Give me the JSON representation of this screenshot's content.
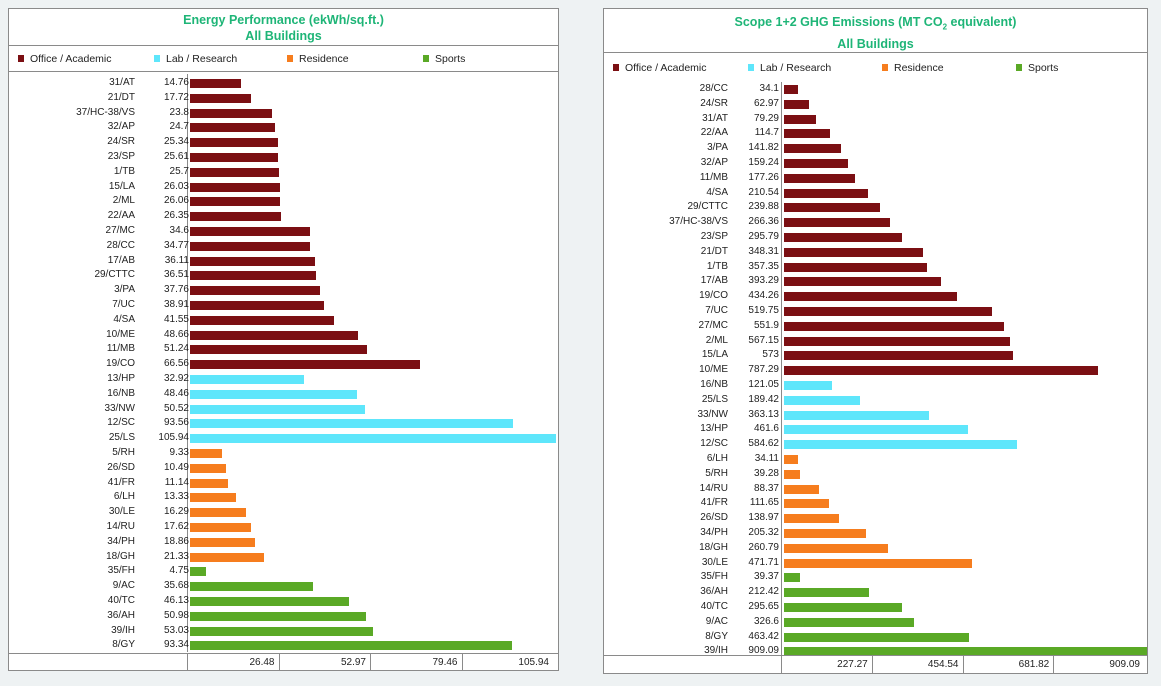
{
  "colors": {
    "office": "#7b0f13",
    "lab": "#5ee6fb",
    "residence": "#f67d1e",
    "sports": "#5aa926",
    "title": "#1eb577"
  },
  "legend": [
    "Office / Academic",
    "Lab / Research",
    "Residence",
    "Sports"
  ],
  "chart_data": [
    {
      "type": "bar",
      "orientation": "horizontal",
      "title": "Energy Performance (ekWh/sq.ft.)",
      "subtitle": "All Buildings",
      "xlim": [
        0,
        105.94
      ],
      "ticks": [
        "26.48",
        "52.97",
        "79.46",
        "105.94"
      ],
      "rows": [
        {
          "name": "31/AT",
          "value": 14.76,
          "group": "office"
        },
        {
          "name": "21/DT",
          "value": 17.72,
          "group": "office"
        },
        {
          "name": "37/HC-38/VS",
          "value": 23.8,
          "group": "office"
        },
        {
          "name": "32/AP",
          "value": 24.7,
          "group": "office"
        },
        {
          "name": "24/SR",
          "value": 25.34,
          "group": "office"
        },
        {
          "name": "23/SP",
          "value": 25.61,
          "group": "office"
        },
        {
          "name": "1/TB",
          "value": 25.7,
          "group": "office"
        },
        {
          "name": "15/LA",
          "value": 26.03,
          "group": "office"
        },
        {
          "name": "2/ML",
          "value": 26.06,
          "group": "office"
        },
        {
          "name": "22/AA",
          "value": 26.35,
          "group": "office"
        },
        {
          "name": "27/MC",
          "value": 34.6,
          "group": "office"
        },
        {
          "name": "28/CC",
          "value": 34.77,
          "group": "office"
        },
        {
          "name": "17/AB",
          "value": 36.11,
          "group": "office"
        },
        {
          "name": "29/CTTC",
          "value": 36.51,
          "group": "office"
        },
        {
          "name": "3/PA",
          "value": 37.76,
          "group": "office"
        },
        {
          "name": "7/UC",
          "value": 38.91,
          "group": "office"
        },
        {
          "name": "4/SA",
          "value": 41.55,
          "group": "office"
        },
        {
          "name": "10/ME",
          "value": 48.66,
          "group": "office"
        },
        {
          "name": "11/MB",
          "value": 51.24,
          "group": "office"
        },
        {
          "name": "19/CO",
          "value": 66.56,
          "group": "office"
        },
        {
          "name": "13/HP",
          "value": 32.92,
          "group": "lab"
        },
        {
          "name": "16/NB",
          "value": 48.46,
          "group": "lab"
        },
        {
          "name": "33/NW",
          "value": 50.52,
          "group": "lab"
        },
        {
          "name": "12/SC",
          "value": 93.56,
          "group": "lab"
        },
        {
          "name": "25/LS",
          "value": 105.94,
          "group": "lab"
        },
        {
          "name": "5/RH",
          "value": 9.33,
          "group": "residence"
        },
        {
          "name": "26/SD",
          "value": 10.49,
          "group": "residence"
        },
        {
          "name": "41/FR",
          "value": 11.14,
          "group": "residence"
        },
        {
          "name": "6/LH",
          "value": 13.33,
          "group": "residence"
        },
        {
          "name": "30/LE",
          "value": 16.29,
          "group": "residence"
        },
        {
          "name": "14/RU",
          "value": 17.62,
          "group": "residence"
        },
        {
          "name": "34/PH",
          "value": 18.86,
          "group": "residence"
        },
        {
          "name": "18/GH",
          "value": 21.33,
          "group": "residence"
        },
        {
          "name": "35/FH",
          "value": 4.75,
          "group": "sports"
        },
        {
          "name": "9/AC",
          "value": 35.68,
          "group": "sports"
        },
        {
          "name": "40/TC",
          "value": 46.13,
          "group": "sports"
        },
        {
          "name": "36/AH",
          "value": 50.98,
          "group": "sports"
        },
        {
          "name": "39/IH",
          "value": 53.03,
          "group": "sports"
        },
        {
          "name": "8/GY",
          "value": 93.34,
          "group": "sports"
        }
      ]
    },
    {
      "type": "bar",
      "orientation": "horizontal",
      "title_parts": [
        "Scope 1+2 GHG Emissions (MT CO",
        "2",
        " equivalent)"
      ],
      "subtitle": "All Buildings",
      "xlim": [
        0,
        909.09
      ],
      "ticks": [
        "227.27",
        "454.54",
        "681.82",
        "909.09"
      ],
      "rows": [
        {
          "name": "28/CC",
          "value": 34.1,
          "group": "office"
        },
        {
          "name": "24/SR",
          "value": 62.97,
          "group": "office"
        },
        {
          "name": "31/AT",
          "value": 79.29,
          "group": "office"
        },
        {
          "name": "22/AA",
          "value": 114.7,
          "group": "office"
        },
        {
          "name": "3/PA",
          "value": 141.82,
          "group": "office"
        },
        {
          "name": "32/AP",
          "value": 159.24,
          "group": "office"
        },
        {
          "name": "11/MB",
          "value": 177.26,
          "group": "office"
        },
        {
          "name": "4/SA",
          "value": 210.54,
          "group": "office"
        },
        {
          "name": "29/CTTC",
          "value": 239.88,
          "group": "office"
        },
        {
          "name": "37/HC-38/VS",
          "value": 266.36,
          "group": "office"
        },
        {
          "name": "23/SP",
          "value": 295.79,
          "group": "office"
        },
        {
          "name": "21/DT",
          "value": 348.31,
          "group": "office"
        },
        {
          "name": "1/TB",
          "value": 357.35,
          "group": "office"
        },
        {
          "name": "17/AB",
          "value": 393.29,
          "group": "office"
        },
        {
          "name": "19/CO",
          "value": 434.26,
          "group": "office"
        },
        {
          "name": "7/UC",
          "value": 519.75,
          "group": "office"
        },
        {
          "name": "27/MC",
          "value": 551.9,
          "group": "office"
        },
        {
          "name": "2/ML",
          "value": 567.15,
          "group": "office"
        },
        {
          "name": "15/LA",
          "value": 573,
          "group": "office"
        },
        {
          "name": "10/ME",
          "value": 787.29,
          "group": "office"
        },
        {
          "name": "16/NB",
          "value": 121.05,
          "group": "lab"
        },
        {
          "name": "25/LS",
          "value": 189.42,
          "group": "lab"
        },
        {
          "name": "33/NW",
          "value": 363.13,
          "group": "lab"
        },
        {
          "name": "13/HP",
          "value": 461.6,
          "group": "lab"
        },
        {
          "name": "12/SC",
          "value": 584.62,
          "group": "lab"
        },
        {
          "name": "6/LH",
          "value": 34.11,
          "group": "residence"
        },
        {
          "name": "5/RH",
          "value": 39.28,
          "group": "residence"
        },
        {
          "name": "14/RU",
          "value": 88.37,
          "group": "residence"
        },
        {
          "name": "41/FR",
          "value": 111.65,
          "group": "residence"
        },
        {
          "name": "26/SD",
          "value": 138.97,
          "group": "residence"
        },
        {
          "name": "34/PH",
          "value": 205.32,
          "group": "residence"
        },
        {
          "name": "18/GH",
          "value": 260.79,
          "group": "residence"
        },
        {
          "name": "30/LE",
          "value": 471.71,
          "group": "residence"
        },
        {
          "name": "35/FH",
          "value": 39.37,
          "group": "sports"
        },
        {
          "name": "36/AH",
          "value": 212.42,
          "group": "sports"
        },
        {
          "name": "40/TC",
          "value": 295.65,
          "group": "sports"
        },
        {
          "name": "9/AC",
          "value": 326.6,
          "group": "sports"
        },
        {
          "name": "8/GY",
          "value": 463.42,
          "group": "sports"
        },
        {
          "name": "39/IH",
          "value": 909.09,
          "group": "sports"
        }
      ]
    }
  ]
}
